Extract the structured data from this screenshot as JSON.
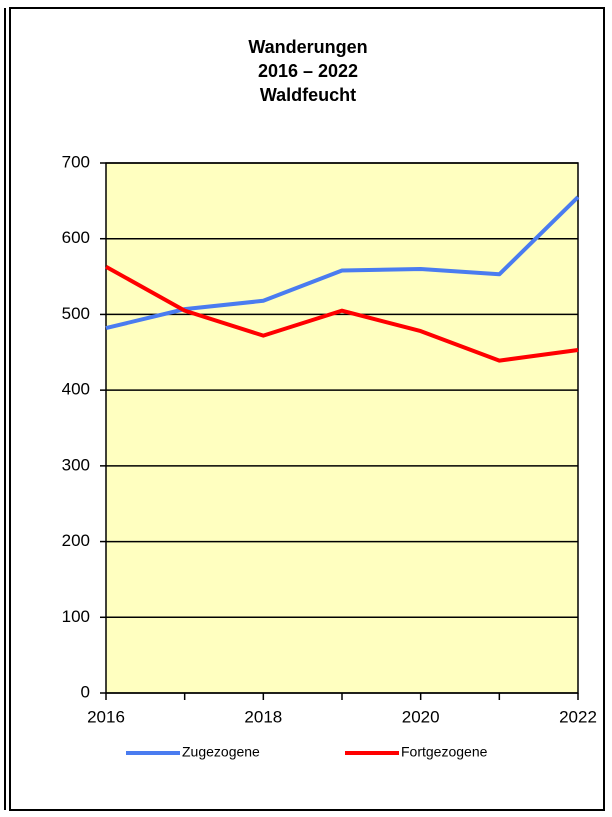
{
  "chart_data": {
    "type": "line",
    "title": [
      "Wanderungen",
      "2016 – 2022",
      "Waldfeucht"
    ],
    "x": [
      2016,
      2017,
      2018,
      2019,
      2020,
      2021,
      2022
    ],
    "xlim": [
      2016,
      2022
    ],
    "xticks": [
      2016,
      2018,
      2020,
      2022
    ],
    "ylim": [
      0,
      700
    ],
    "yticks": [
      0,
      100,
      200,
      300,
      400,
      500,
      600,
      700
    ],
    "grid": true,
    "background": "#ffffc0",
    "legend": "bottom",
    "series": [
      {
        "name": "Zugezogene",
        "color": "#4a7cf0",
        "values": [
          482,
          507,
          518,
          558,
          560,
          553,
          655
        ]
      },
      {
        "name": "Fortgezogene",
        "color": "#ff0000",
        "values": [
          563,
          505,
          472,
          505,
          478,
          439,
          453
        ]
      }
    ]
  }
}
